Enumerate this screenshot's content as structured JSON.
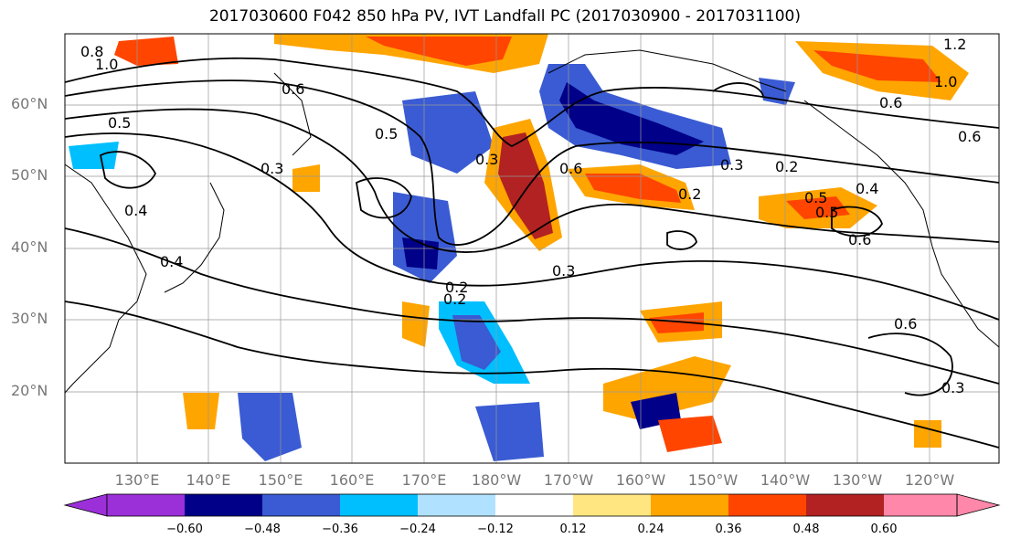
{
  "title": "2017030600 F042 850 hPa PV, IVT Landfall PC (2017030900 - 2017031100)",
  "lat_labels": [
    "60°N",
    "50°N",
    "40°N",
    "30°N",
    "20°N"
  ],
  "lon_labels": [
    "130°E",
    "140°E",
    "150°E",
    "160°E",
    "170°E",
    "180°W",
    "170°W",
    "160°W",
    "150°W",
    "140°W",
    "130°W",
    "120°W"
  ],
  "contour_labels": [
    "0.8",
    "1.0",
    "0.6",
    "0.5",
    "0.4",
    "0.3",
    "0.2",
    "0.5",
    "0.3",
    "0.6",
    "0.2",
    "0.3",
    "0.2",
    "0.4",
    "0.5",
    "0.6",
    "1.0",
    "1.2",
    "0.6",
    "0.3",
    "0.2",
    "0.6",
    "0.3",
    "0.4",
    "0.6",
    "0.5"
  ],
  "colorbar": {
    "ticks": [
      "−0.60",
      "−0.48",
      "−0.36",
      "−0.24",
      "−0.12",
      "0.12",
      "0.24",
      "0.36",
      "0.48",
      "0.60"
    ],
    "colors": [
      "#9b30d9",
      "#000088",
      "#3a5bd3",
      "#00bfff",
      "#b0e2ff",
      "#ffffff",
      "#ffe680",
      "#ffa500",
      "#ff4500",
      "#b22222",
      "#ff88aa"
    ]
  }
}
